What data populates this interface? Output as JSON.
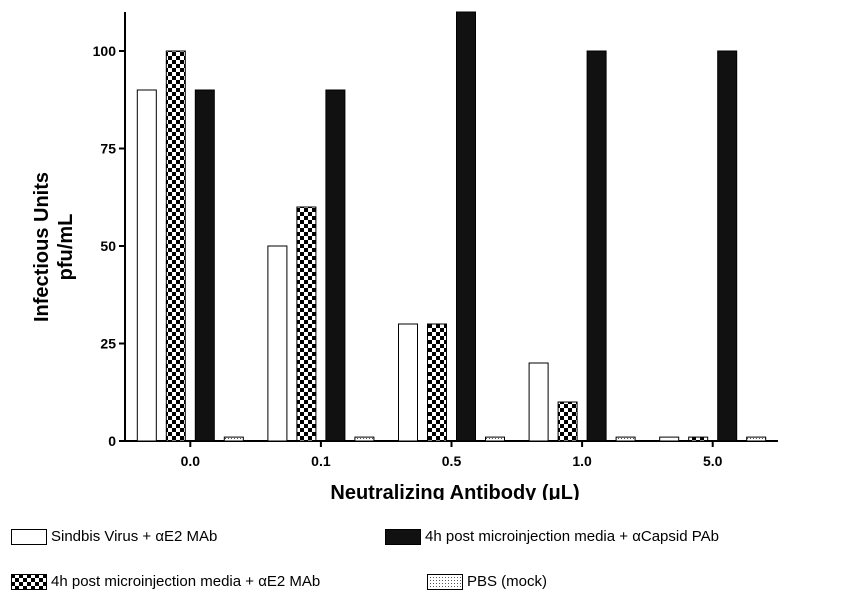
{
  "chart_data": {
    "type": "bar",
    "title": "",
    "xlabel": "Neutralizing Antibody (μL)",
    "ylabel_line1": "Infectious Units",
    "ylabel_line2": "pfu/mL",
    "categories": [
      "0.0",
      "0.1",
      "0.5",
      "1.0",
      "5.0"
    ],
    "ylim": [
      0,
      110
    ],
    "yticks": [
      0,
      25,
      50,
      75,
      100
    ],
    "grid": false,
    "legend_position": "bottom",
    "series": [
      {
        "name": "Sindbis Virus + αE2 MAb",
        "fill": "white",
        "values": [
          90,
          50,
          30,
          20,
          1
        ]
      },
      {
        "name": "4h post microinjection media + αE2 MAb",
        "fill": "checker",
        "values": [
          100,
          60,
          30,
          10,
          1
        ]
      },
      {
        "name": "4h post microinjection media + αCapsid PAb",
        "fill": "black",
        "values": [
          90,
          90,
          110,
          100,
          100
        ]
      },
      {
        "name": "PBS (mock)",
        "fill": "dots",
        "values": [
          1,
          1,
          1,
          1,
          1
        ]
      }
    ]
  },
  "colors": {
    "bar_black": "#111111",
    "outline": "#000000",
    "background": "#ffffff"
  },
  "legend": {
    "sindbis": "Sindbis Virus +  αE2 MAb",
    "media_e2": "4h post microinjection media  +   αE2 MAb",
    "media_capsid": "4h post microinjection  media + αCapsid PAb",
    "pbs": "PBS (mock)"
  }
}
